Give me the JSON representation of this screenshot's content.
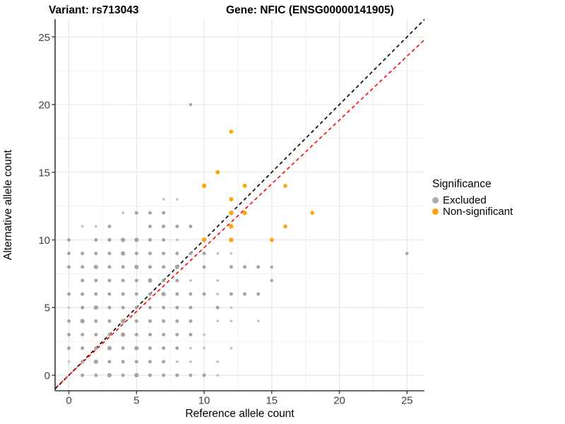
{
  "titles": {
    "variant": "Variant: rs713043",
    "gene": "Gene: NFIC (ENSG00000141905)"
  },
  "axes": {
    "x_label": "Reference allele count",
    "y_label": "Alternative allele count"
  },
  "legend": {
    "title": "Significance",
    "items": [
      {
        "label": "Excluded",
        "color": "#ABABAB"
      },
      {
        "label": "Non-significant",
        "color": "#FFA40D"
      }
    ]
  },
  "colors": {
    "grid_major": "#E3E3E3",
    "grid_minor": "#F0F0F0",
    "axis": "#383838",
    "tick_text": "#404040"
  },
  "chart_data": {
    "type": "scatter",
    "x": {
      "label": "Reference allele count",
      "ticks": [
        0,
        5,
        10,
        15,
        20,
        25
      ],
      "minor_ticks": [
        2.5,
        7.5,
        12.5,
        17.5,
        22.5
      ],
      "range": [
        -1.02,
        26.29
      ]
    },
    "y": {
      "label": "Alternative allele count",
      "ticks": [
        0,
        5,
        10,
        15,
        20,
        25
      ],
      "minor_ticks": [
        2.5,
        7.5,
        12.5,
        17.5,
        22.5
      ],
      "range": [
        -1.15,
        26.32
      ]
    },
    "legend_position": "right",
    "series": [
      {
        "name": "Excluded",
        "color": "#A4A4A4",
        "color_light": "#C2C2C2",
        "points": [
          [
            1,
            0,
            2.5
          ],
          [
            2,
            0,
            2.5
          ],
          [
            3,
            0,
            3.1
          ],
          [
            4,
            0,
            2.5
          ],
          [
            5,
            0,
            3.1
          ],
          [
            6,
            0,
            2.5
          ],
          [
            7,
            0,
            2.5
          ],
          [
            8,
            0,
            2.5
          ],
          [
            9,
            0,
            2.5
          ],
          [
            10,
            0,
            2.5
          ],
          [
            11,
            0,
            1.9
          ],
          [
            0,
            1,
            1.9
          ],
          [
            1,
            1,
            2.5
          ],
          [
            2,
            1,
            3.1
          ],
          [
            3,
            1,
            2.5
          ],
          [
            4,
            1,
            2.5
          ],
          [
            5,
            1,
            2.5
          ],
          [
            6,
            1,
            2.5
          ],
          [
            7,
            1,
            2.5
          ],
          [
            8,
            1,
            1.9
          ],
          [
            9,
            1,
            1.9
          ],
          [
            11,
            1,
            1.9
          ],
          [
            0,
            2,
            2.5
          ],
          [
            1,
            2,
            2.5
          ],
          [
            2,
            2,
            2.5
          ],
          [
            3,
            2,
            3.1
          ],
          [
            4,
            2,
            2.5
          ],
          [
            5,
            2,
            3.1
          ],
          [
            6,
            2,
            2.5
          ],
          [
            7,
            2,
            2.5
          ],
          [
            8,
            2,
            2.5
          ],
          [
            9,
            2,
            1.9
          ],
          [
            10,
            2,
            1.9
          ],
          [
            12,
            2,
            1.9
          ],
          [
            0,
            3,
            2.5
          ],
          [
            1,
            3,
            2.5
          ],
          [
            2,
            3,
            2.5
          ],
          [
            3,
            3,
            2.5
          ],
          [
            4,
            3,
            3.1
          ],
          [
            5,
            3,
            2.5
          ],
          [
            6,
            3,
            2.5
          ],
          [
            7,
            3,
            2.5
          ],
          [
            8,
            3,
            2.5
          ],
          [
            9,
            3,
            2.5
          ],
          [
            10,
            3,
            1.9
          ],
          [
            0,
            4,
            2.5
          ],
          [
            1,
            4,
            3.1
          ],
          [
            2,
            4,
            2.5
          ],
          [
            3,
            4,
            2.5
          ],
          [
            4,
            4,
            3.1
          ],
          [
            5,
            4,
            2.5
          ],
          [
            6,
            4,
            2.5
          ],
          [
            7,
            4,
            2.5
          ],
          [
            8,
            4,
            2.5
          ],
          [
            9,
            4,
            2.5
          ],
          [
            11,
            4,
            1.9
          ],
          [
            12,
            4,
            1.9
          ],
          [
            14,
            4,
            1.9
          ],
          [
            0,
            5,
            1.9
          ],
          [
            1,
            5,
            2.5
          ],
          [
            2,
            5,
            3.1
          ],
          [
            3,
            5,
            2.5
          ],
          [
            4,
            5,
            2.5
          ],
          [
            5,
            5,
            2.5
          ],
          [
            6,
            5,
            2.5
          ],
          [
            7,
            5,
            2.5
          ],
          [
            8,
            5,
            2.5
          ],
          [
            9,
            5,
            2.5
          ],
          [
            11,
            5,
            2.5
          ],
          [
            12,
            5,
            1.9
          ],
          [
            0,
            6,
            2.5
          ],
          [
            1,
            6,
            2.5
          ],
          [
            2,
            6,
            2.5
          ],
          [
            3,
            6,
            2.5
          ],
          [
            4,
            6,
            2.5
          ],
          [
            5,
            6,
            2.5
          ],
          [
            6,
            6,
            2.5
          ],
          [
            7,
            6,
            3.1
          ],
          [
            8,
            6,
            2.5
          ],
          [
            9,
            6,
            2.5
          ],
          [
            10,
            6,
            2.5
          ],
          [
            11,
            6,
            1.9
          ],
          [
            12,
            6,
            2.5
          ],
          [
            13,
            6,
            2.5
          ],
          [
            14,
            6,
            2.5
          ],
          [
            1,
            7,
            2.5
          ],
          [
            2,
            7,
            2.5
          ],
          [
            3,
            7,
            2.5
          ],
          [
            4,
            7,
            2.5
          ],
          [
            5,
            7,
            2.5
          ],
          [
            6,
            7,
            3.1
          ],
          [
            7,
            7,
            2.5
          ],
          [
            8,
            7,
            2.5
          ],
          [
            9,
            7,
            1.9
          ],
          [
            11,
            7,
            1.9
          ],
          [
            15,
            7,
            2.2
          ],
          [
            0,
            8,
            2.5
          ],
          [
            1,
            8,
            2.5
          ],
          [
            2,
            8,
            3.1
          ],
          [
            3,
            8,
            2.5
          ],
          [
            4,
            8,
            2.5
          ],
          [
            5,
            8,
            3.1
          ],
          [
            6,
            8,
            2.5
          ],
          [
            7,
            8,
            2.5
          ],
          [
            8,
            8,
            3.1
          ],
          [
            10,
            8,
            2.5
          ],
          [
            12,
            8,
            2.5
          ],
          [
            13,
            8,
            2.5
          ],
          [
            14,
            8,
            2.5
          ],
          [
            15,
            8,
            2.2
          ],
          [
            0,
            9,
            2.5
          ],
          [
            1,
            9,
            2.5
          ],
          [
            2,
            9,
            2.5
          ],
          [
            3,
            9,
            2.5
          ],
          [
            4,
            9,
            3.1
          ],
          [
            5,
            9,
            2.5
          ],
          [
            6,
            9,
            2.5
          ],
          [
            7,
            9,
            2.5
          ],
          [
            8,
            9,
            2.5
          ],
          [
            9,
            9,
            2.5
          ],
          [
            10,
            9,
            2.5
          ],
          [
            11,
            9,
            1.9
          ],
          [
            12,
            9,
            1.9
          ],
          [
            25,
            9,
            2.2
          ],
          [
            0,
            10,
            2.5
          ],
          [
            2,
            10,
            2.5
          ],
          [
            3,
            10,
            2.5
          ],
          [
            4,
            10,
            3.1
          ],
          [
            5,
            10,
            3.1
          ],
          [
            6,
            10,
            2.5
          ],
          [
            7,
            10,
            2.5
          ],
          [
            8,
            10,
            1.9
          ],
          [
            1,
            11,
            1.9
          ],
          [
            2,
            11,
            1.9
          ],
          [
            3,
            11,
            2.5
          ],
          [
            6,
            11,
            2.5
          ],
          [
            7,
            11,
            2.5
          ],
          [
            8,
            11,
            2.5
          ],
          [
            9,
            11,
            2.5
          ],
          [
            4,
            12,
            1.9
          ],
          [
            5,
            12,
            2.5
          ],
          [
            6,
            12,
            2.5
          ],
          [
            7,
            12,
            2.5
          ],
          [
            7,
            13,
            1.9
          ],
          [
            8,
            13,
            1.9
          ],
          [
            9,
            20,
            2.2
          ]
        ]
      },
      {
        "name": "Non-significant",
        "color": "#FFA40D",
        "points": [
          [
            10,
            10,
            3.2
          ],
          [
            12,
            10,
            3.2
          ],
          [
            15,
            10,
            3.0
          ],
          [
            12,
            11,
            3.2
          ],
          [
            16,
            11,
            2.8
          ],
          [
            12,
            12,
            3.2
          ],
          [
            13,
            12,
            3.2
          ],
          [
            18,
            12,
            2.8
          ],
          [
            12,
            13,
            3.0
          ],
          [
            10,
            14,
            3.2
          ],
          [
            13,
            14,
            3.0
          ],
          [
            16,
            14,
            2.8
          ],
          [
            11,
            15,
            3.0
          ],
          [
            12,
            18,
            3.0
          ]
        ]
      }
    ],
    "ref_lines": [
      {
        "name": "identity-line",
        "slope": 1.0,
        "intercept": 0,
        "color": "#000000",
        "dash": "5,4"
      },
      {
        "name": "fitted-ratio-line",
        "slope": 0.943,
        "intercept": 0,
        "color": "#FF0000",
        "dash": "5,4"
      }
    ]
  }
}
